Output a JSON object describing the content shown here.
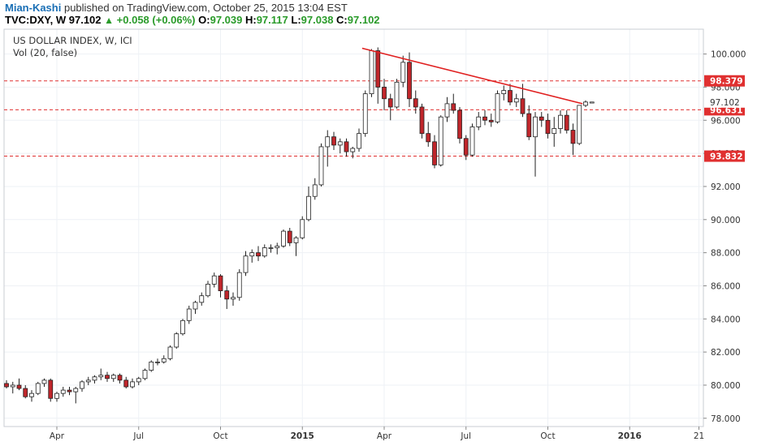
{
  "header": {
    "author": "Mian-Kashi",
    "published": "published on TradingView.com, October 25, 2015 13:04 EST",
    "symbol": "TVC:DXY, W",
    "price": "97.102",
    "arrow": "▲",
    "change": "+0.058 (+0.06%)",
    "o_label": "O:",
    "o_value": "97.039",
    "h_label": "H:",
    "h_value": "97.117",
    "l_label": "L:",
    "l_value": "97.038",
    "c_label": "C:",
    "c_value": "97.102"
  },
  "chart_data": {
    "type": "candlestick",
    "title": "US DOLLAR INDEX, W, ICI",
    "subtitle": "Vol (20, false)",
    "ylim": [
      77.5,
      101.5
    ],
    "yticks": [
      "78.000",
      "80.000",
      "82.000",
      "84.000",
      "86.000",
      "88.000",
      "90.000",
      "92.000",
      "94.000",
      "96.000",
      "98.000",
      "100.000"
    ],
    "xticks": [
      {
        "label": "Apr",
        "week": 8,
        "bold": false
      },
      {
        "label": "Jul",
        "week": 21,
        "bold": false
      },
      {
        "label": "Oct",
        "week": 34,
        "bold": false
      },
      {
        "label": "2015",
        "week": 47,
        "bold": true
      },
      {
        "label": "Apr",
        "week": 60,
        "bold": false
      },
      {
        "label": "Jul",
        "week": 73,
        "bold": false
      },
      {
        "label": "Oct",
        "week": 86,
        "bold": false
      },
      {
        "label": "2016",
        "week": 99,
        "bold": true
      },
      {
        "label": "21",
        "week": 110,
        "bold": false
      }
    ],
    "hlines": [
      {
        "value": 98.379,
        "label": "98.379",
        "color": "#e03030"
      },
      {
        "value": 96.631,
        "label": "96.631",
        "color": "#e03030"
      },
      {
        "value": 93.832,
        "label": "93.832",
        "color": "#e03030"
      }
    ],
    "last_price": {
      "value": 97.102,
      "label": "97.102"
    },
    "trendline": {
      "from_week": 56.5,
      "from_value": 100.35,
      "to_week": 91.5,
      "to_value": 97.0,
      "color": "#e02020"
    },
    "colors": {
      "up": "#ffffff",
      "down": "#c0262b",
      "wick": "#222222",
      "grid": "#eef1f5"
    },
    "candles": [
      [
        80.1,
        80.3,
        79.8,
        79.9
      ],
      [
        79.9,
        80.2,
        79.5,
        80.0
      ],
      [
        80.0,
        80.4,
        79.7,
        79.8
      ],
      [
        79.8,
        80.0,
        79.2,
        79.3
      ],
      [
        79.3,
        79.7,
        79.0,
        79.5
      ],
      [
        79.5,
        80.2,
        79.4,
        80.1
      ],
      [
        80.1,
        80.4,
        79.9,
        80.3
      ],
      [
        80.3,
        80.4,
        79.0,
        79.2
      ],
      [
        79.2,
        79.6,
        79.0,
        79.5
      ],
      [
        79.5,
        79.9,
        79.3,
        79.7
      ],
      [
        79.7,
        79.9,
        79.4,
        79.6
      ],
      [
        79.6,
        79.9,
        78.9,
        79.8
      ],
      [
        79.8,
        80.3,
        79.6,
        80.2
      ],
      [
        80.2,
        80.5,
        80.0,
        80.3
      ],
      [
        80.3,
        80.6,
        80.1,
        80.5
      ],
      [
        80.5,
        81.0,
        80.3,
        80.6
      ],
      [
        80.6,
        80.8,
        80.2,
        80.4
      ],
      [
        80.4,
        80.7,
        80.2,
        80.6
      ],
      [
        80.6,
        80.7,
        80.1,
        80.3
      ],
      [
        80.3,
        80.5,
        79.8,
        79.9
      ],
      [
        79.9,
        80.4,
        79.8,
        80.2
      ],
      [
        80.2,
        80.5,
        80.0,
        80.4
      ],
      [
        80.4,
        81.0,
        80.3,
        80.9
      ],
      [
        80.9,
        81.5,
        80.8,
        81.4
      ],
      [
        81.4,
        81.6,
        81.2,
        81.4
      ],
      [
        81.4,
        81.8,
        81.3,
        81.6
      ],
      [
        81.6,
        82.4,
        81.5,
        82.3
      ],
      [
        82.3,
        83.2,
        82.2,
        83.1
      ],
      [
        83.1,
        84.0,
        83.0,
        83.9
      ],
      [
        83.9,
        84.8,
        83.7,
        84.6
      ],
      [
        84.6,
        85.1,
        84.3,
        85.0
      ],
      [
        85.0,
        85.6,
        84.8,
        85.4
      ],
      [
        85.4,
        86.3,
        85.3,
        86.1
      ],
      [
        86.1,
        86.8,
        85.9,
        86.6
      ],
      [
        86.6,
        86.7,
        85.3,
        85.7
      ],
      [
        85.7,
        86.0,
        84.6,
        85.2
      ],
      [
        85.2,
        85.6,
        84.8,
        85.3
      ],
      [
        85.3,
        87.0,
        85.1,
        86.8
      ],
      [
        86.8,
        88.1,
        86.6,
        87.8
      ],
      [
        87.8,
        88.2,
        87.4,
        88.0
      ],
      [
        88.0,
        88.4,
        87.5,
        87.8
      ],
      [
        87.8,
        88.5,
        87.7,
        88.3
      ],
      [
        88.3,
        88.5,
        88.0,
        88.3
      ],
      [
        88.3,
        88.6,
        87.9,
        88.4
      ],
      [
        88.4,
        89.4,
        88.3,
        89.3
      ],
      [
        89.3,
        89.5,
        88.4,
        88.6
      ],
      [
        88.6,
        89.0,
        87.8,
        88.9
      ],
      [
        88.9,
        90.2,
        88.8,
        90.0
      ],
      [
        90.0,
        92.0,
        89.9,
        91.4
      ],
      [
        91.4,
        92.5,
        91.2,
        92.1
      ],
      [
        92.1,
        94.6,
        92.0,
        94.4
      ],
      [
        94.4,
        95.4,
        93.2,
        95.0
      ],
      [
        95.0,
        95.3,
        94.2,
        94.5
      ],
      [
        94.5,
        94.9,
        94.0,
        94.7
      ],
      [
        94.7,
        94.9,
        93.8,
        94.1
      ],
      [
        94.1,
        94.4,
        93.7,
        94.3
      ],
      [
        94.3,
        95.5,
        94.1,
        95.2
      ],
      [
        95.2,
        97.8,
        95.0,
        97.6
      ],
      [
        97.6,
        100.3,
        97.4,
        100.2
      ],
      [
        100.2,
        100.4,
        97.0,
        98.0
      ],
      [
        98.0,
        98.5,
        96.6,
        97.3
      ],
      [
        97.3,
        97.6,
        96.0,
        96.8
      ],
      [
        96.8,
        98.5,
        96.7,
        98.3
      ],
      [
        98.3,
        99.9,
        98.0,
        99.5
      ],
      [
        99.5,
        100.1,
        96.8,
        97.3
      ],
      [
        97.3,
        97.8,
        96.4,
        96.8
      ],
      [
        96.8,
        97.0,
        94.9,
        95.2
      ],
      [
        95.2,
        95.9,
        94.4,
        94.7
      ],
      [
        94.7,
        95.1,
        93.1,
        93.3
      ],
      [
        93.3,
        96.3,
        93.2,
        96.2
      ],
      [
        96.2,
        97.4,
        95.9,
        97.0
      ],
      [
        97.0,
        97.6,
        96.4,
        96.6
      ],
      [
        96.6,
        96.8,
        94.6,
        94.9
      ],
      [
        94.9,
        95.1,
        93.6,
        93.9
      ],
      [
        93.9,
        95.8,
        93.8,
        95.6
      ],
      [
        95.6,
        96.5,
        95.4,
        96.2
      ],
      [
        96.2,
        96.6,
        95.7,
        96.0
      ],
      [
        96.0,
        96.4,
        95.6,
        95.9
      ],
      [
        95.9,
        97.8,
        95.8,
        97.6
      ],
      [
        97.6,
        98.1,
        97.2,
        97.8
      ],
      [
        97.8,
        98.2,
        96.9,
        97.1
      ],
      [
        97.1,
        97.6,
        96.8,
        97.3
      ],
      [
        97.3,
        98.2,
        96.2,
        96.4
      ],
      [
        96.4,
        96.9,
        94.8,
        95.0
      ],
      [
        95.0,
        96.5,
        92.6,
        96.2
      ],
      [
        96.2,
        96.5,
        95.6,
        96.0
      ],
      [
        96.0,
        96.4,
        94.9,
        95.2
      ],
      [
        95.2,
        96.2,
        94.4,
        95.5
      ],
      [
        95.5,
        96.6,
        95.2,
        96.3
      ],
      [
        96.3,
        96.6,
        95.2,
        95.4
      ],
      [
        95.4,
        95.8,
        93.9,
        94.6
      ],
      [
        94.6,
        96.9,
        94.5,
        96.9
      ],
      [
        96.9,
        97.2,
        96.8,
        97.1
      ],
      [
        97.04,
        97.12,
        97.04,
        97.1
      ]
    ]
  }
}
